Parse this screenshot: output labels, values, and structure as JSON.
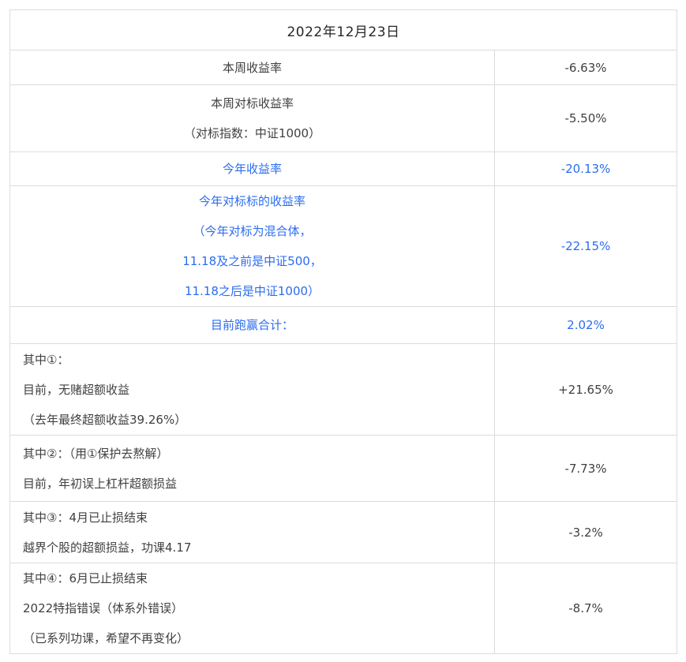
{
  "colors": {
    "accent_blue": "#2B6CF0",
    "text": "#404040",
    "border": "#dcdcdc",
    "header_text": "#262626",
    "background": "#ffffff"
  },
  "header": {
    "date": "2022年12月23日"
  },
  "rows": [
    {
      "lines": [
        "本周收益率"
      ],
      "value": "-6.63%"
    },
    {
      "lines": [
        "本周对标收益率",
        "（对标指数：中证1000）"
      ],
      "value": "-5.50%"
    },
    {
      "lines": [
        "今年收益率"
      ],
      "value": "-20.13%"
    },
    {
      "lines": [
        "今年对标标的收益率",
        "（今年对标为混合体，",
        "11.18及之前是中证500，",
        "11.18之后是中证1000）"
      ],
      "value": "-22.15%"
    },
    {
      "lines": [
        "目前跑赢合计："
      ],
      "value": "2.02%"
    },
    {
      "lines": [
        "其中①：",
        "目前，无赌超额收益",
        "（去年最终超额收益39.26%）"
      ],
      "value": "+21.65%"
    },
    {
      "lines": [
        "其中②：（用①保护去熬解）",
        "目前，年初误上杠杆超额损益"
      ],
      "value": "-7.73%"
    },
    {
      "lines": [
        "其中③：4月已止损结束",
        "越界个股的超额损益，功课4.17"
      ],
      "value": "-3.2%"
    },
    {
      "lines": [
        "其中④：6月已止损结束",
        "2022特指错误（体系外错误）",
        "（已系列功课，希望不再变化）"
      ],
      "value": "-8.7%"
    }
  ]
}
